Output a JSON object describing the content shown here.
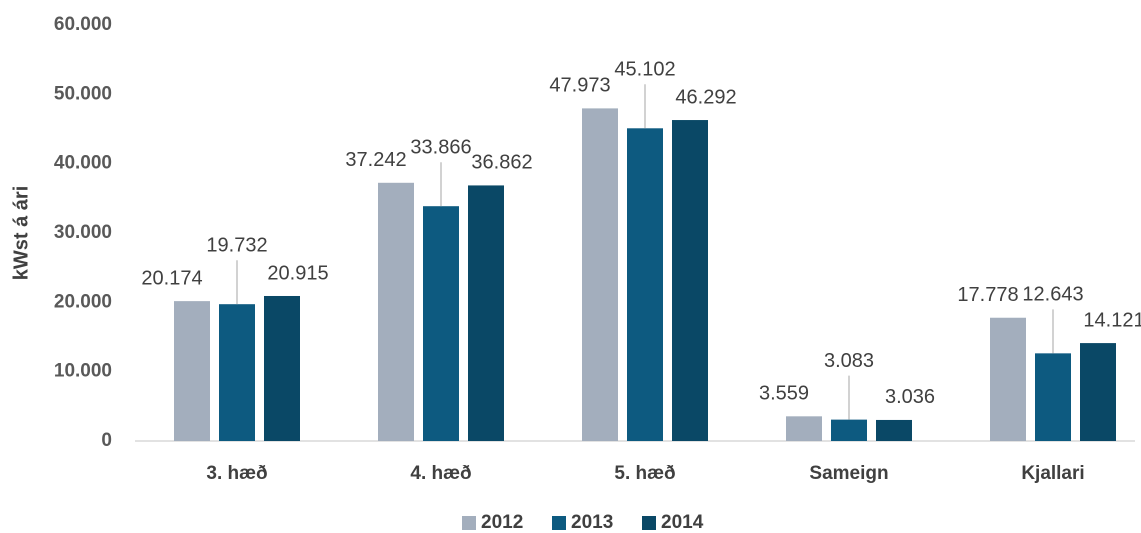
{
  "chart_data": {
    "type": "bar",
    "y_label": "kWst á ári",
    "categories": [
      "3. hæð",
      "4. hæð",
      "5. hæð",
      "Sameign",
      "Kjallari"
    ],
    "series": [
      {
        "name": "2012",
        "color": "#a3aebd",
        "values": [
          20174,
          37242,
          47973,
          3559,
          17778
        ],
        "value_labels": [
          "20.174",
          "37.242",
          "47.973",
          "3.559",
          "17.778"
        ]
      },
      {
        "name": "2013",
        "color": "#0d5a80",
        "values": [
          19732,
          33866,
          45102,
          3083,
          12643
        ],
        "value_labels": [
          "19.732",
          "33.866",
          "45.102",
          "3.083",
          "12.643"
        ]
      },
      {
        "name": "2014",
        "color": "#0a4866",
        "values": [
          20915,
          36862,
          46292,
          3036,
          14121
        ],
        "value_labels": [
          "20.915",
          "36.862",
          "46.292",
          "3.036",
          "14.121"
        ]
      }
    ],
    "ylim": [
      0,
      60000
    ],
    "yticks": [
      0,
      {
        "value": 10000,
        "label": "10.000"
      },
      {
        "value": 20000,
        "label": "20.000"
      },
      {
        "value": 30000,
        "label": "30.000"
      },
      {
        "value": 40000,
        "label": "40.000"
      },
      {
        "value": 50000,
        "label": "50.000"
      },
      {
        "value": 60000,
        "label": "60.000"
      }
    ],
    "legend": "bottom"
  }
}
